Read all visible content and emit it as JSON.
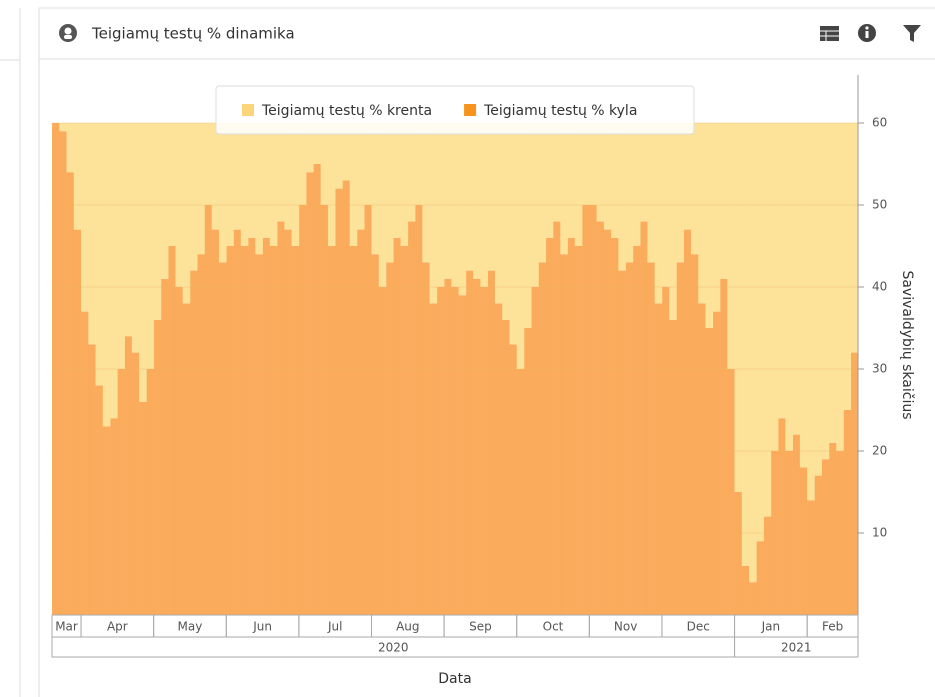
{
  "chart_data": {
    "type": "bar",
    "stacked": true,
    "title": "Teigiamų testų % dinamika",
    "x_label": "Data",
    "y_label": "Savivaldybių skaičius",
    "categories": [
      "Mar",
      null,
      null,
      null,
      "Apr",
      null,
      null,
      null,
      null,
      null,
      null,
      null,
      null,
      null,
      "May",
      null,
      null,
      null,
      null,
      null,
      null,
      null,
      null,
      null,
      "Jun",
      null,
      null,
      null,
      null,
      null,
      null,
      null,
      null,
      null,
      "Jul",
      null,
      null,
      null,
      null,
      null,
      null,
      null,
      null,
      null,
      "Aug",
      null,
      null,
      null,
      null,
      null,
      null,
      null,
      null,
      null,
      "Sep",
      null,
      null,
      null,
      null,
      null,
      null,
      null,
      null,
      null,
      "Oct",
      null,
      null,
      null,
      null,
      null,
      null,
      null,
      null,
      null,
      "Nov",
      null,
      null,
      null,
      null,
      null,
      null,
      null,
      null,
      null,
      "Dec",
      null,
      null,
      null,
      null,
      null,
      null,
      null,
      null,
      null,
      "Jan",
      null,
      null,
      null,
      null,
      null,
      null,
      null,
      null,
      null,
      "Feb",
      null,
      null,
      null,
      null,
      null,
      null
    ],
    "years": [
      "2020",
      null,
      null,
      null,
      null,
      null,
      null,
      null,
      null,
      null,
      null,
      null,
      null,
      null,
      null,
      null,
      null,
      null,
      null,
      null,
      null,
      null,
      null,
      null,
      null,
      null,
      null,
      null,
      null,
      null,
      null,
      null,
      null,
      null,
      null,
      null,
      null,
      null,
      null,
      null,
      null,
      null,
      null,
      null,
      null,
      null,
      null,
      null,
      null,
      null,
      null,
      null,
      null,
      null,
      null,
      null,
      null,
      null,
      null,
      null,
      null,
      null,
      null,
      null,
      null,
      null,
      null,
      null,
      null,
      null,
      null,
      null,
      null,
      null,
      null,
      null,
      null,
      null,
      null,
      null,
      null,
      null,
      null,
      null,
      null,
      null,
      null,
      null,
      null,
      null,
      null,
      null,
      null,
      null,
      "2021",
      null,
      null,
      null,
      null,
      null,
      null,
      null,
      null,
      null,
      null,
      null,
      null,
      null,
      null,
      null,
      null
    ],
    "series": [
      {
        "name": "Teigiamų testų % kyla",
        "color": "#fbab5c",
        "legend_color": "#f7941d",
        "values": [
          60,
          59,
          54,
          47,
          37,
          33,
          28,
          23,
          24,
          30,
          34,
          32,
          26,
          30,
          36,
          41,
          45,
          40,
          38,
          42,
          44,
          50,
          47,
          43,
          45,
          47,
          45,
          46,
          44,
          46,
          45,
          48,
          47,
          45,
          50,
          54,
          55,
          50,
          45,
          52,
          53,
          45,
          47,
          50,
          44,
          40,
          43,
          46,
          45,
          48,
          50,
          43,
          38,
          40,
          41,
          40,
          39,
          42,
          41,
          40,
          42,
          38,
          36,
          33,
          30,
          35,
          40,
          43,
          46,
          48,
          44,
          46,
          45,
          50,
          50,
          48,
          47,
          46,
          42,
          43,
          45,
          48,
          43,
          38,
          40,
          36,
          43,
          47,
          44,
          38,
          35,
          37,
          41,
          30,
          15,
          6,
          4,
          9,
          12,
          20,
          24,
          20,
          22,
          18,
          14,
          17,
          19,
          21,
          20,
          25,
          32
        ]
      },
      {
        "name": "Teigiamų testų % krenta",
        "color": "#fde29a",
        "legend_color": "#fdd57a",
        "values": [
          0,
          1,
          6,
          13,
          23,
          27,
          32,
          37,
          36,
          30,
          26,
          28,
          34,
          30,
          24,
          19,
          15,
          20,
          22,
          18,
          16,
          10,
          13,
          17,
          15,
          13,
          15,
          14,
          16,
          14,
          15,
          12,
          13,
          15,
          10,
          6,
          5,
          10,
          15,
          8,
          7,
          15,
          13,
          10,
          16,
          20,
          17,
          14,
          15,
          12,
          10,
          17,
          22,
          20,
          19,
          20,
          21,
          18,
          19,
          20,
          18,
          22,
          24,
          27,
          30,
          25,
          20,
          17,
          14,
          12,
          16,
          14,
          15,
          10,
          10,
          12,
          13,
          14,
          18,
          17,
          15,
          12,
          17,
          22,
          20,
          24,
          17,
          13,
          16,
          22,
          25,
          23,
          19,
          30,
          45,
          54,
          56,
          51,
          48,
          40,
          36,
          40,
          38,
          42,
          46,
          43,
          41,
          39,
          40,
          35,
          28
        ]
      }
    ],
    "legend_order": [
      1,
      0
    ],
    "ylim": [
      0,
      60
    ],
    "yticks": [
      10,
      20,
      30,
      40,
      50,
      60
    ],
    "grid": true
  }
}
